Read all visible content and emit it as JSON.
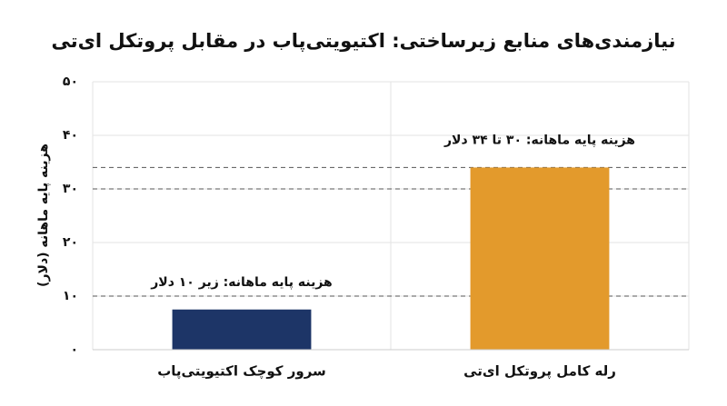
{
  "chart_data": {
    "type": "bar",
    "title": "نیازمندی‌های منابع زیرساختی: اکتیویتی‌پاب در مقابل پروتکل ای‌تی",
    "y_label": "هزینه پایه ماهانه (دلار)",
    "categories": [
      "سرور کوچک اکتیویتی‌پاب",
      "رله کامل پروتکل ای‌تی"
    ],
    "values": [
      7.5,
      34
    ],
    "colors": [
      "#1d3567",
      "#e39a2c"
    ],
    "annotations": [
      "هزینه پایه ماهانه: زیر ۱۰ دلار",
      "هزینه پایه ماهانه: ۳۰ تا ۳۴ دلار"
    ],
    "reference_lines": [
      10,
      30,
      34
    ],
    "ylim": [
      0,
      50
    ],
    "yticks": [
      {
        "value": 0,
        "label": "۰"
      },
      {
        "value": 10,
        "label": "۱۰"
      },
      {
        "value": 20,
        "label": "۲۰"
      },
      {
        "value": 30,
        "label": "۳۰"
      },
      {
        "value": 40,
        "label": "۴۰"
      },
      {
        "value": 50,
        "label": "۵۰"
      }
    ],
    "grid": true
  }
}
